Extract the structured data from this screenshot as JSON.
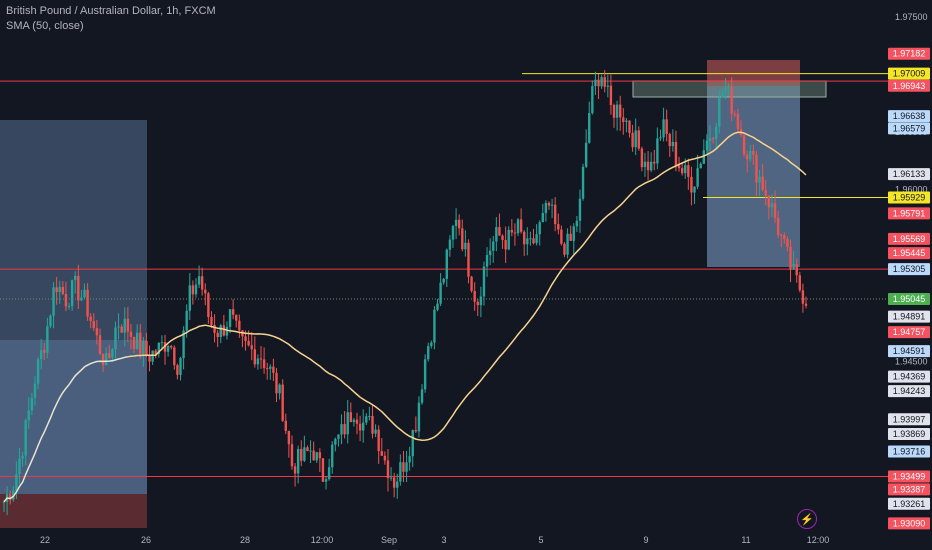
{
  "header": {
    "symbol_line": "British Pound / Australian Dollar, 1h, FXCM",
    "indicator_line": "SMA (50, close)"
  },
  "icons": {
    "bolt": "lightning-bolt-icon"
  },
  "chart_data": {
    "type": "candlestick",
    "title": "British Pound / Australian Dollar, 1h, FXCM",
    "indicator": "SMA (50, close)",
    "ylim": [
      1.9305,
      1.9765
    ],
    "y_ticks": [
      1.975,
      1.965,
      1.96,
      1.945
    ],
    "y_tick_labels": [
      "1.97500",
      "1.96500",
      "1.96000",
      "1.94500"
    ],
    "x_tick_labels": [
      "22",
      "26",
      "28",
      "12:00",
      "Sep",
      "3",
      "5",
      "9",
      "11",
      "12:00"
    ],
    "colors": {
      "up": "#26a69a",
      "down": "#ef5350",
      "sma": "#f7d390",
      "sma_early": "#e8e4d0",
      "background": "#131722",
      "hline": "#f23645",
      "yline": "#f5e625"
    },
    "horizontal_lines": [
      {
        "price": 1.96943,
        "color": "#f23645"
      },
      {
        "price": 1.95305,
        "color": "#f23645"
      },
      {
        "price": 1.93499,
        "color": "#f23645"
      },
      {
        "price": 1.97009,
        "color": "#f5e625"
      },
      {
        "price": 1.95929,
        "color": "#f5e625"
      }
    ],
    "last_price": 1.95045,
    "price_tags": [
      {
        "label": "1.97182",
        "price": 1.97182,
        "bg": "#f7525f",
        "fg": "#ffffff"
      },
      {
        "label": "1.97009",
        "price": 1.97009,
        "bg": "#f5e625",
        "fg": "#131722"
      },
      {
        "label": "1.96943",
        "price": 1.96943,
        "bg": "#f7525f",
        "fg": "#ffffff"
      },
      {
        "label": "1.96638",
        "price": 1.96638,
        "bg": "#bbd9fb",
        "fg": "#131722"
      },
      {
        "label": "1.96579",
        "price": 1.96579,
        "bg": "#bbd9fb",
        "fg": "#131722"
      },
      {
        "label": "1.96133",
        "price": 1.96133,
        "bg": "#e0e3eb",
        "fg": "#131722"
      },
      {
        "label": "1.95929",
        "price": 1.95929,
        "bg": "#f5e625",
        "fg": "#131722"
      },
      {
        "label": "1.95791",
        "price": 1.95791,
        "bg": "#f7525f",
        "fg": "#ffffff"
      },
      {
        "label": "1.95569",
        "price": 1.95569,
        "bg": "#f7525f",
        "fg": "#ffffff"
      },
      {
        "label": "1.95445",
        "price": 1.95445,
        "bg": "#f7525f",
        "fg": "#ffffff"
      },
      {
        "label": "1.95305",
        "price": 1.95305,
        "bg": "#bbd9fb",
        "fg": "#131722"
      },
      {
        "label": "1.95045",
        "price": 1.95045,
        "bg": "#4caf50",
        "fg": "#ffffff"
      },
      {
        "label": "1.94891",
        "price": 1.94891,
        "bg": "#e0e3eb",
        "fg": "#131722"
      },
      {
        "label": "1.94757",
        "price": 1.94757,
        "bg": "#f7525f",
        "fg": "#ffffff"
      },
      {
        "label": "1.94591",
        "price": 1.94591,
        "bg": "#bbd9fb",
        "fg": "#131722"
      },
      {
        "label": "1.94369",
        "price": 1.94369,
        "bg": "#e0e3eb",
        "fg": "#131722"
      },
      {
        "label": "1.94243",
        "price": 1.94243,
        "bg": "#e0e3eb",
        "fg": "#131722"
      },
      {
        "label": "1.93997",
        "price": 1.93997,
        "bg": "#e0e3eb",
        "fg": "#131722"
      },
      {
        "label": "1.93869",
        "price": 1.93869,
        "bg": "#e0e3eb",
        "fg": "#131722"
      },
      {
        "label": "1.93716",
        "price": 1.93716,
        "bg": "#bbd9fb",
        "fg": "#131722"
      },
      {
        "label": "1.93499",
        "price": 1.93499,
        "bg": "#f7525f",
        "fg": "#ffffff"
      },
      {
        "label": "1.93387",
        "price": 1.93387,
        "bg": "#f7525f",
        "fg": "#ffffff"
      },
      {
        "label": "1.93261",
        "price": 1.93261,
        "bg": "#e0e3eb",
        "fg": "#131722"
      },
      {
        "label": "1.93090",
        "price": 1.9309,
        "bg": "#f7525f",
        "fg": "#ffffff"
      }
    ],
    "price_path": [
      1.9328,
      1.9345,
      1.9385,
      1.9435,
      1.947,
      1.952,
      1.9505,
      1.9515,
      1.95,
      1.947,
      1.9445,
      1.9485,
      1.948,
      1.9465,
      1.9455,
      1.946,
      1.947,
      1.9445,
      1.9505,
      1.9525,
      1.9485,
      1.9475,
      1.949,
      1.9465,
      1.946,
      1.9455,
      1.944,
      1.9415,
      1.936,
      1.9365,
      1.9375,
      1.935,
      1.9375,
      1.939,
      1.941,
      1.9395,
      1.9395,
      1.9365,
      1.9345,
      1.9365,
      1.9395,
      1.9455,
      1.9495,
      1.9535,
      1.958,
      1.954,
      1.95,
      1.9545,
      1.956,
      1.9555,
      1.9565,
      1.9545,
      1.9565,
      1.9585,
      1.9555,
      1.955,
      1.9585,
      1.9675,
      1.9705,
      1.967,
      1.967,
      1.965,
      1.963,
      1.962,
      1.9655,
      1.9635,
      1.9615,
      1.9605,
      1.9635,
      1.9655,
      1.969,
      1.967,
      1.964,
      1.962,
      1.96,
      1.9575,
      1.9545,
      1.952,
      1.9505
    ]
  }
}
